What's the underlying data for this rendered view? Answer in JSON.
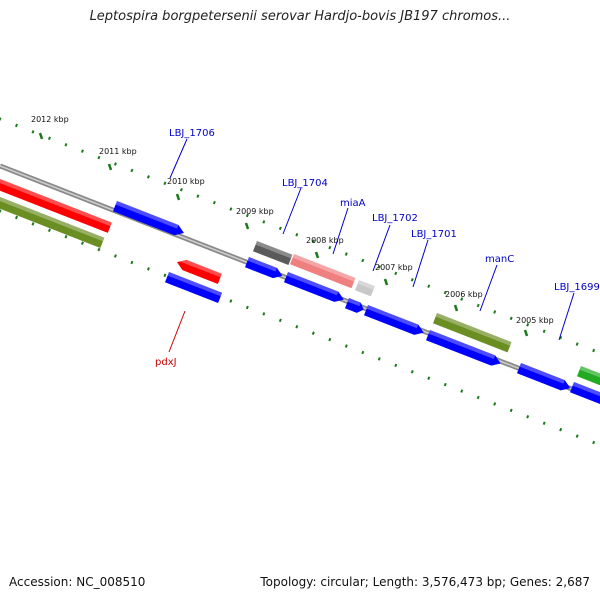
{
  "title": "Leptospira borgpetersenii serovar Hardjo-bovis JB197 chromos...",
  "accession": "Accession: NC_008510",
  "topology": "Topology: circular; Length: 3,576,473 bp; Genes: 2,687",
  "kbp_labels": [
    "2012 kbp",
    "2011 kbp",
    "2010 kbp",
    "2009 kbp",
    "2008 kbp",
    "2007 kbp",
    "2006 kbp",
    "2005 kbp"
  ],
  "gene_labels": [
    "LBJ_1706",
    "LBJ_1704",
    "miaA",
    "LBJ_1702",
    "LBJ_1701",
    "manC",
    "LBJ_1699",
    "pdxJ"
  ],
  "colors": {
    "blue": "#0000ff",
    "red": "#ff0000",
    "olive": "#6b8e23",
    "gray": "#5a5a5a",
    "pink": "#f08080",
    "lightgray": "#c8c8c8",
    "green": "#22aa22",
    "tick": "#1a7a1a",
    "label_blue": "#0000cc",
    "label_red": "#cc0000"
  }
}
